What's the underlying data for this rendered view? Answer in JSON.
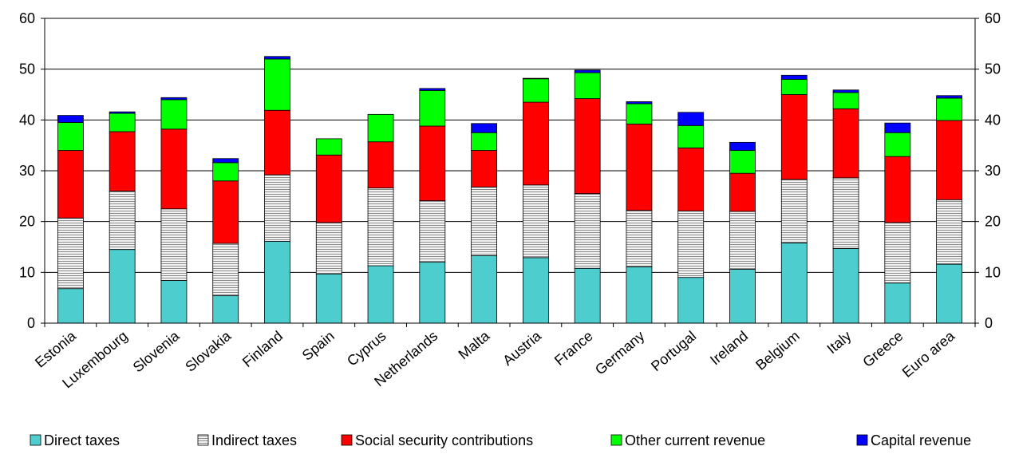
{
  "chart_data": {
    "type": "bar",
    "stacked": true,
    "title": "",
    "xlabel": "",
    "ylabel": "",
    "ylim": [
      0,
      60
    ],
    "yticks": [
      0,
      10,
      20,
      30,
      40,
      50,
      60
    ],
    "secondary_y_axis": true,
    "grid": "horizontal",
    "legend_position": "bottom",
    "categories": [
      "Estonia",
      "Luxembourg",
      "Slovenia",
      "Slovakia",
      "Finland",
      "Spain",
      "Cyprus",
      "Netherlands",
      "Malta",
      "Austria",
      "France",
      "Germany",
      "Portugal",
      "Ireland",
      "Belgium",
      "Italy",
      "Greece",
      "Euro area"
    ],
    "series": [
      {
        "name": "Direct taxes",
        "color": "#4ECDCF",
        "pattern": "solid",
        "values": [
          6.8,
          14.5,
          8.4,
          5.4,
          16.1,
          9.7,
          11.3,
          12.0,
          13.3,
          12.9,
          10.8,
          11.1,
          9.0,
          10.6,
          15.8,
          14.7,
          7.9,
          11.6
        ]
      },
      {
        "name": "Indirect taxes",
        "color": "#C0C0C0",
        "pattern": "horizontal-stripes",
        "values": [
          13.9,
          11.5,
          14.1,
          10.3,
          13.1,
          10.1,
          15.3,
          12.1,
          13.5,
          14.3,
          14.7,
          11.1,
          13.1,
          11.4,
          12.5,
          13.9,
          11.9,
          12.7
        ]
      },
      {
        "name": "Social security contributions",
        "color": "#FF0000",
        "pattern": "solid",
        "values": [
          13.3,
          11.7,
          15.7,
          12.3,
          12.7,
          13.3,
          9.1,
          14.7,
          7.2,
          16.3,
          18.7,
          17.0,
          12.4,
          7.5,
          16.7,
          13.6,
          13.0,
          15.6
        ]
      },
      {
        "name": "Other current revenue",
        "color": "#00FF00",
        "pattern": "solid",
        "values": [
          5.5,
          3.6,
          5.8,
          3.6,
          10.1,
          3.2,
          5.4,
          7.0,
          3.5,
          4.6,
          5.1,
          4.0,
          4.4,
          4.5,
          3.0,
          3.2,
          4.7,
          4.4
        ]
      },
      {
        "name": "Capital revenue",
        "color": "#0000FF",
        "pattern": "solid",
        "values": [
          1.4,
          0.3,
          0.4,
          0.8,
          0.5,
          0.0,
          0.0,
          0.4,
          1.8,
          0.1,
          0.5,
          0.4,
          2.6,
          1.6,
          0.8,
          0.5,
          1.9,
          0.5
        ]
      }
    ]
  }
}
